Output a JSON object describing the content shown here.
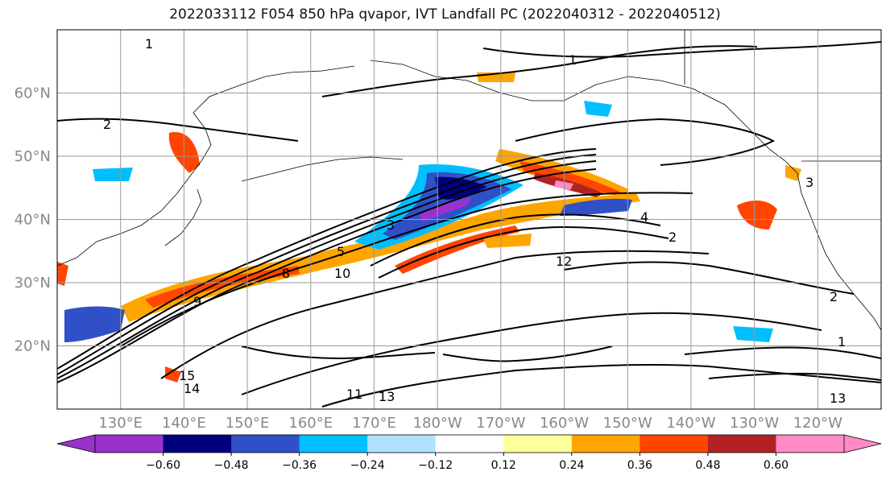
{
  "title": "2022033112 F054 850 hPa qvapor, IVT Landfall PC (2022040312 - 2022040512)",
  "map": {
    "lon_range_deg_east": [
      120,
      250
    ],
    "lat_range": [
      10,
      70
    ],
    "lat_labels": [
      "20°N",
      "30°N",
      "40°N",
      "50°N",
      "60°N"
    ],
    "lat_values": [
      20,
      30,
      40,
      50,
      60
    ],
    "lon_labels": [
      "130°E",
      "140°E",
      "150°E",
      "160°E",
      "170°E",
      "180°W",
      "170°W",
      "160°W",
      "150°W",
      "140°W",
      "130°W",
      "120°W"
    ],
    "lon_values": [
      130,
      140,
      150,
      160,
      170,
      180,
      190,
      200,
      210,
      220,
      230,
      240
    ]
  },
  "contour_labels": [
    "1",
    "2",
    "3",
    "4",
    "5",
    "8",
    "9",
    "10",
    "11",
    "12",
    "13",
    "14",
    "15"
  ],
  "colorbar": {
    "colors": [
      "#9932cc",
      "#00007f",
      "#3050c8",
      "#00bfff",
      "#b0e2ff",
      "#ffffff",
      "#ffff99",
      "#ffa500",
      "#ff4500",
      "#b22222",
      "#ff8ac6"
    ],
    "tick_labels": [
      "−0.60",
      "−0.48",
      "−0.36",
      "−0.24",
      "−0.12",
      "0.12",
      "0.24",
      "0.36",
      "0.48",
      "0.60"
    ],
    "extend": "both"
  }
}
